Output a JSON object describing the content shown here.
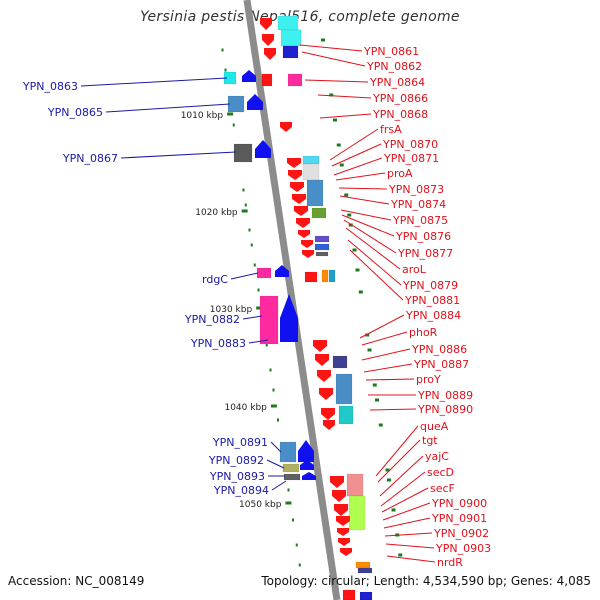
{
  "title": "Yersinia pestis Nepal516, complete genome",
  "footer": {
    "accession": "Accession: NC_008149",
    "topology": "Topology: circular; Length: 4,534,590 bp; Genes: 4,085"
  },
  "colors": {
    "left_label": "#1a1aa6",
    "right_label": "#e0121b",
    "backbone": "#8c8c8c",
    "tick": "#1f7a1f",
    "scale_text": "#222222"
  },
  "scale_labels": [
    "1010 kbp",
    "1020 kbp",
    "1030 kbp",
    "1040 kbp",
    "1050 kbp"
  ],
  "left_labels": [
    "YPN_0863",
    "YPN_0865",
    "YPN_0867",
    "rdgC",
    "YPN_0882",
    "YPN_0883",
    "YPN_0891",
    "YPN_0892",
    "YPN_0893",
    "YPN_0894"
  ],
  "right_labels": [
    "YPN_0861",
    "YPN_0862",
    "YPN_0864",
    "YPN_0866",
    "YPN_0868",
    "frsA",
    "YPN_0870",
    "YPN_0871",
    "proA",
    "YPN_0873",
    "YPN_0874",
    "YPN_0875",
    "YPN_0876",
    "YPN_0877",
    "aroL",
    "YPN_0879",
    "YPN_0881",
    "YPN_0884",
    "phoR",
    "YPN_0886",
    "YPN_0887",
    "proY",
    "YPN_0889",
    "YPN_0890",
    "queA",
    "tgt",
    "yajC",
    "secD",
    "secF",
    "YPN_0900",
    "YPN_0901",
    "YPN_0902",
    "YPN_0903",
    "nrdR"
  ]
}
